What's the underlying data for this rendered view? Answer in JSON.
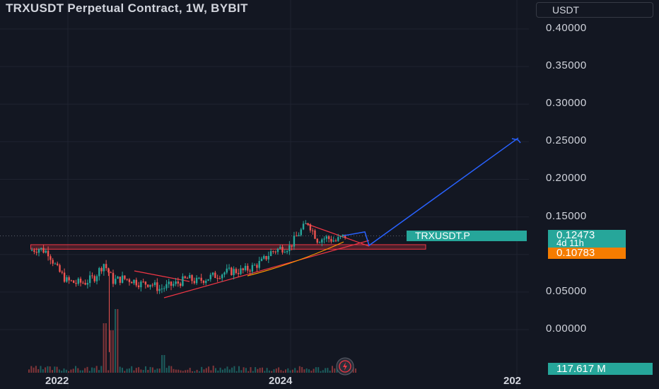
{
  "title": "TRXUSDT Perpetual Contract, 1W, BYBIT",
  "price_axis": {
    "unit": "USDT",
    "ticks": [
      "0.40000",
      "0.35000",
      "0.30000",
      "0.25000",
      "0.20000",
      "0.15000",
      "0.05000",
      "0.00000"
    ]
  },
  "time_axis": {
    "ticks": [
      "2022",
      "2024",
      "202"
    ]
  },
  "labels": {
    "symbol": "TRXUSDT.P",
    "last_price": "0.12473",
    "countdown": "4d 11h",
    "level_price": "0.10783",
    "volume": "117.617 M"
  },
  "colors": {
    "background": "#131722",
    "up": "#26a69a",
    "down": "#ef5350",
    "projection": "#2962ff",
    "level_tag": "#f57c00",
    "trendline": "#f23645"
  },
  "chart_data": {
    "type": "candlestick",
    "title": "TRXUSDT Perpetual Contract, 1W, BYBIT",
    "y_unit": "USDT",
    "ylim": [
      -0.025,
      0.42
    ],
    "xlim": [
      "2021-08",
      "2025-12"
    ],
    "grid": true,
    "x": [
      "2021-09",
      "2021-10",
      "2021-11",
      "2021-12",
      "2022-01",
      "2022-02",
      "2022-03",
      "2022-04",
      "2022-05",
      "2022-06",
      "2022-07",
      "2022-08",
      "2022-09",
      "2022-10",
      "2022-11",
      "2022-12",
      "2023-01",
      "2023-02",
      "2023-03",
      "2023-04",
      "2023-05",
      "2023-06",
      "2023-07",
      "2023-08",
      "2023-09",
      "2023-10",
      "2023-11",
      "2023-12",
      "2024-01",
      "2024-02",
      "2024-03",
      "2024-04",
      "2024-05",
      "2024-06",
      "2024-07"
    ],
    "close": [
      0.105,
      0.108,
      0.103,
      0.08,
      0.065,
      0.062,
      0.063,
      0.07,
      0.088,
      0.065,
      0.068,
      0.066,
      0.061,
      0.062,
      0.054,
      0.058,
      0.062,
      0.068,
      0.064,
      0.068,
      0.072,
      0.076,
      0.078,
      0.078,
      0.083,
      0.09,
      0.103,
      0.108,
      0.11,
      0.128,
      0.143,
      0.12,
      0.122,
      0.118,
      0.125
    ],
    "volume_last": "117.617 M",
    "levels": [
      {
        "name": "support zone",
        "from": 0.107,
        "to": 0.113
      },
      {
        "name": "level",
        "value": 0.10783
      }
    ],
    "projection": {
      "x": [
        "2024-04",
        "2024-09",
        "2024-11",
        "2025-11"
      ],
      "y": [
        0.125,
        0.13,
        0.112,
        0.255
      ]
    },
    "last_price": 0.12473
  }
}
